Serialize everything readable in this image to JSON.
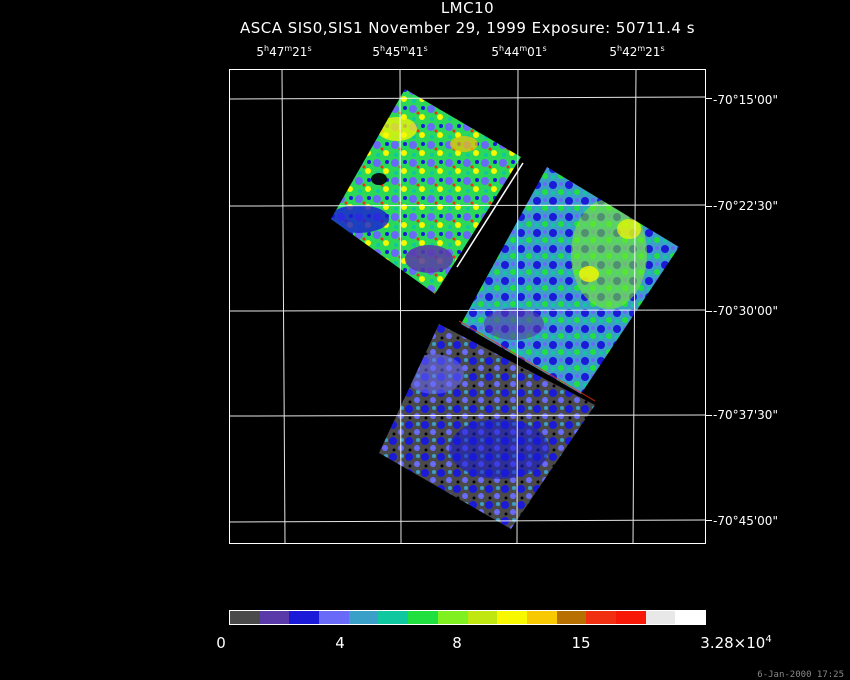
{
  "title": "LMC10",
  "subtitle": "ASCA SIS0,SIS1 November 29, 1999 Exposure: 50711.4 s",
  "ra_labels": [
    {
      "h": "5",
      "m": "47",
      "s": "21"
    },
    {
      "h": "5",
      "m": "45",
      "s": "41"
    },
    {
      "h": "5",
      "m": "44",
      "s": "01"
    },
    {
      "h": "5",
      "m": "42",
      "s": "21"
    }
  ],
  "dec_labels": [
    "-70°15'00\"",
    "-70°22'30\"",
    "-70°30'00\"",
    "-70°37'30\"",
    "-70°45'00\""
  ],
  "colorbar": {
    "colors": [
      "#4a4a4a",
      "#5a3aa8",
      "#1a1ad8",
      "#6a6af8",
      "#3aa0c8",
      "#10c8a0",
      "#20e040",
      "#80f020",
      "#c0e810",
      "#f8f800",
      "#f8c800",
      "#b87000",
      "#f03010",
      "#f81808",
      "#e8e8e8",
      "#ffffff"
    ],
    "labels": [
      {
        "text": "0"
      },
      {
        "text": "4"
      },
      {
        "text": "8"
      },
      {
        "text": "15"
      },
      {
        "text": "3.28×10",
        "sup": "4"
      }
    ]
  },
  "footer": "6-Jan-2000 17:25"
}
